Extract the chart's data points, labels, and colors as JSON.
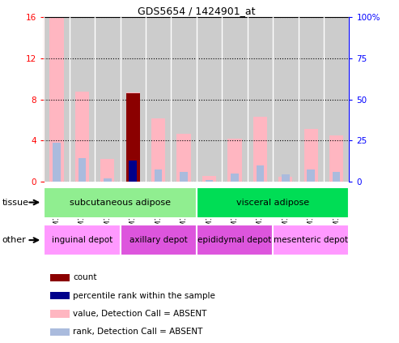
{
  "title": "GDS5654 / 1424901_at",
  "samples": [
    "GSM1289208",
    "GSM1289209",
    "GSM1289210",
    "GSM1289214",
    "GSM1289215",
    "GSM1289216",
    "GSM1289211",
    "GSM1289212",
    "GSM1289213",
    "GSM1289217",
    "GSM1289218",
    "GSM1289219"
  ],
  "value_absent": [
    16.0,
    8.8,
    2.2,
    8.7,
    6.2,
    4.7,
    0.6,
    4.2,
    6.3,
    0.5,
    5.1,
    4.5
  ],
  "rank_absent": [
    3.8,
    2.3,
    0.3,
    null,
    1.2,
    1.0,
    0.15,
    0.8,
    1.6,
    0.7,
    1.2,
    1.0
  ],
  "count_val": [
    null,
    null,
    null,
    8.6,
    null,
    null,
    null,
    null,
    null,
    null,
    null,
    null
  ],
  "percentile_val": [
    null,
    null,
    null,
    2.1,
    null,
    null,
    null,
    null,
    null,
    null,
    null,
    null
  ],
  "ylim_left": [
    0,
    16
  ],
  "ylim_right": [
    0,
    100
  ],
  "yticks_left": [
    0,
    4,
    8,
    12,
    16
  ],
  "yticks_right": [
    0,
    25,
    50,
    75,
    100
  ],
  "tissue_groups": [
    {
      "label": "subcutaneous adipose",
      "start": 0,
      "end": 6,
      "color": "#90EE90"
    },
    {
      "label": "visceral adipose",
      "start": 6,
      "end": 12,
      "color": "#00DD55"
    }
  ],
  "other_groups": [
    {
      "label": "inguinal depot",
      "start": 0,
      "end": 3,
      "color": "#FF99FF"
    },
    {
      "label": "axillary depot",
      "start": 3,
      "end": 6,
      "color": "#DD55DD"
    },
    {
      "label": "epididymal depot",
      "start": 6,
      "end": 9,
      "color": "#DD55DD"
    },
    {
      "label": "mesenteric depot",
      "start": 9,
      "end": 12,
      "color": "#FF99FF"
    }
  ],
  "color_count": "#8B0000",
  "color_percentile": "#00008B",
  "color_value_absent": "#FFB6C1",
  "color_rank_absent": "#AABBDD",
  "bg_color": "#CCCCCC",
  "legend_items": [
    {
      "label": "count",
      "color": "#8B0000"
    },
    {
      "label": "percentile rank within the sample",
      "color": "#00008B"
    },
    {
      "label": "value, Detection Call = ABSENT",
      "color": "#FFB6C1"
    },
    {
      "label": "rank, Detection Call = ABSENT",
      "color": "#AABBDD"
    }
  ]
}
